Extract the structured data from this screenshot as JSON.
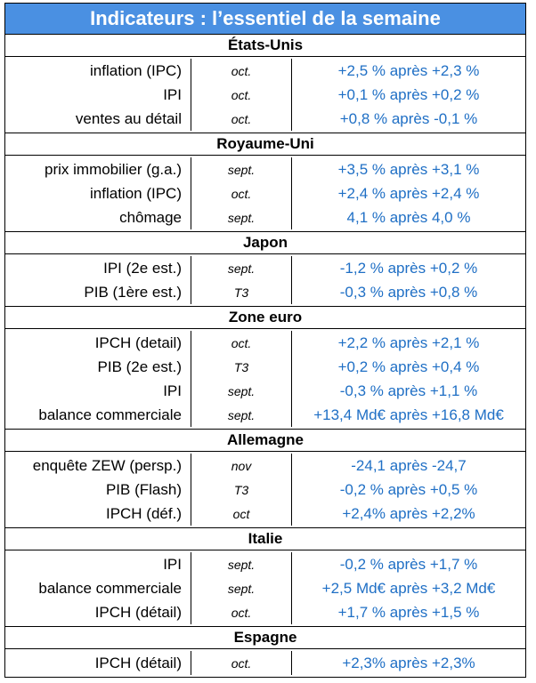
{
  "title": "Indicateurs : l’essentiel de la semaine",
  "sections": [
    {
      "name": "États-Unis",
      "rows": [
        {
          "label": "inflation (IPC)",
          "period": "oct.",
          "value": "+2,5 % après +2,3 %"
        },
        {
          "label": "IPI",
          "period": "oct.",
          "value": "+0,1 % après +0,2 %"
        },
        {
          "label": "ventes au détail",
          "period": "oct.",
          "value": "+0,8 % après -0,1 %"
        }
      ]
    },
    {
      "name": "Royaume-Uni",
      "rows": [
        {
          "label": "prix immobilier (g.a.)",
          "period": "sept.",
          "value": "+3,5 % après +3,1 %"
        },
        {
          "label": "inflation (IPC)",
          "period": "oct.",
          "value": "+2,4 % après +2,4 %"
        },
        {
          "label": "chômage",
          "period": "sept.",
          "value": "4,1 % après 4,0 %"
        }
      ]
    },
    {
      "name": "Japon",
      "rows": [
        {
          "label": "IPI (2e est.)",
          "period": "sept.",
          "value": "-1,2 % après +0,2 %"
        },
        {
          "label": "PIB (1ère est.)",
          "period": "T3",
          "value": "-0,3 % après +0,8 %"
        }
      ]
    },
    {
      "name": "Zone euro",
      "rows": [
        {
          "label": "IPCH (detail)",
          "period": "oct.",
          "value": "+2,2 % après +2,1 %"
        },
        {
          "label": "PIB (2e est.)",
          "period": "T3",
          "value": "+0,2 % après +0,4 %"
        },
        {
          "label": "IPI",
          "period": "sept.",
          "value": "-0,3 % après +1,1 %"
        },
        {
          "label": "balance commerciale",
          "period": "sept.",
          "value": "+13,4 Md€ après +16,8 Md€"
        }
      ]
    },
    {
      "name": "Allemagne",
      "rows": [
        {
          "label": "enquête ZEW (persp.)",
          "period": "nov",
          "value": "-24,1 après -24,7"
        },
        {
          "label": "PIB  (Flash)",
          "period": "T3",
          "value": "-0,2 % après +0,5 %"
        },
        {
          "label": "IPCH (déf.)",
          "period": "oct",
          "value": "+2,4% après +2,2%"
        }
      ]
    },
    {
      "name": "Italie",
      "rows": [
        {
          "label": "IPI",
          "period": "sept.",
          "value": "-0,2 % après +1,7 %"
        },
        {
          "label": "balance commerciale",
          "period": "sept.",
          "value": "+2,5 Md€ après +3,2 Md€"
        },
        {
          "label": "IPCH (détail)",
          "period": "oct.",
          "value": "+1,7 % après +1,5 %"
        }
      ]
    },
    {
      "name": "Espagne",
      "rows": [
        {
          "label": "IPCH (détail)",
          "period": "oct.",
          "value": "+2,3% après +2,3%"
        }
      ]
    }
  ]
}
